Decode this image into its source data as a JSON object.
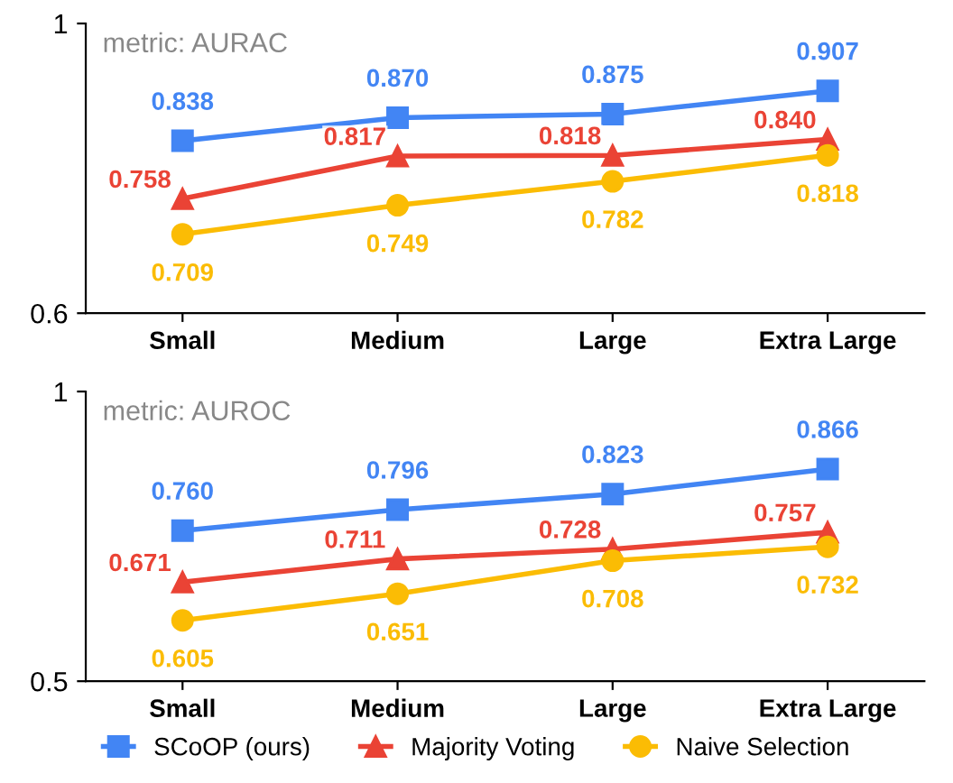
{
  "chart_data": [
    {
      "type": "line",
      "categories": [
        "Small",
        "Medium",
        "Large",
        "Extra Large"
      ],
      "ylim": [
        0.6,
        1
      ],
      "yticks": [
        0.6,
        1
      ],
      "annotations": [
        "metric: AURAC"
      ],
      "legend": "bottom",
      "grid": false,
      "series": [
        {
          "name": "SCoOP (ours)",
          "color": "#4285f4",
          "marker": "square",
          "values": [
            0.838,
            0.87,
            0.875,
            0.907
          ],
          "value_labels": [
            "0.838",
            "0.870",
            "0.875",
            "0.907"
          ]
        },
        {
          "name": "Majority Voting",
          "color": "#ea4335",
          "marker": "triangle",
          "values": [
            0.758,
            0.817,
            0.818,
            0.84
          ],
          "value_labels": [
            "0.758",
            "0.817",
            "0.818",
            "0.840"
          ]
        },
        {
          "name": "Naive Selection",
          "color": "#fbbc04",
          "marker": "circle",
          "values": [
            0.709,
            0.749,
            0.782,
            0.818
          ],
          "value_labels": [
            "0.709",
            "0.749",
            "0.782",
            "0.818"
          ]
        }
      ]
    },
    {
      "type": "line",
      "categories": [
        "Small",
        "Medium",
        "Large",
        "Extra Large"
      ],
      "ylim": [
        0.5,
        1
      ],
      "yticks": [
        0.5,
        1
      ],
      "annotations": [
        "metric: AUROC"
      ],
      "legend": "bottom",
      "grid": false,
      "series": [
        {
          "name": "SCoOP (ours)",
          "color": "#4285f4",
          "marker": "square",
          "values": [
            0.76,
            0.796,
            0.823,
            0.866
          ],
          "value_labels": [
            "0.760",
            "0.796",
            "0.823",
            "0.866"
          ]
        },
        {
          "name": "Majority Voting",
          "color": "#ea4335",
          "marker": "triangle",
          "values": [
            0.671,
            0.711,
            0.728,
            0.757
          ],
          "value_labels": [
            "0.671",
            "0.711",
            "0.728",
            "0.757"
          ]
        },
        {
          "name": "Naive Selection",
          "color": "#fbbc04",
          "marker": "circle",
          "values": [
            0.605,
            0.651,
            0.708,
            0.732
          ],
          "value_labels": [
            "0.605",
            "0.651",
            "0.708",
            "0.732"
          ]
        }
      ]
    }
  ]
}
